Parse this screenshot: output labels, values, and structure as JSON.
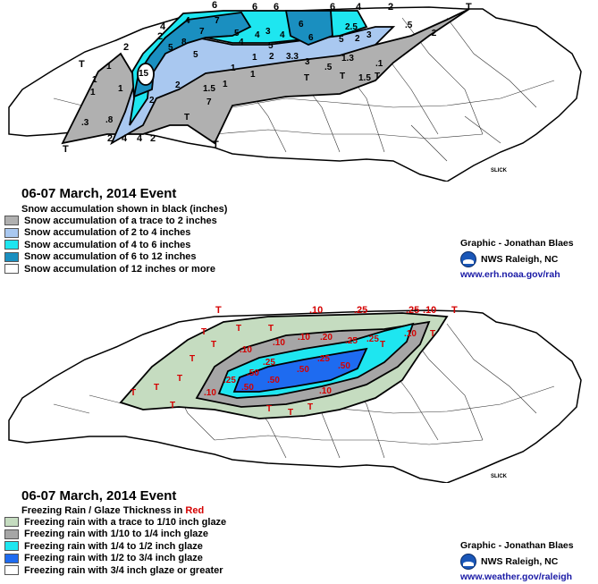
{
  "snow": {
    "title": "06-07 March, 2014 Event",
    "subtitle": "Snow accumulation shown in black (inches)",
    "legend": [
      {
        "label": "Snow accumulation of a trace to 2 inches",
        "color": "#b0b0b0"
      },
      {
        "label": "Snow accumulation of 2 to 4 inches",
        "color": "#a9c8f0"
      },
      {
        "label": "Snow accumulation of 4 to 6 inches",
        "color": "#1ee6f0"
      },
      {
        "label": "Snow accumulation of 6 to 12 inches",
        "color": "#1a8fc0"
      },
      {
        "label": "Snow accumulation of 12 inches or more",
        "color": "#ffffff"
      }
    ],
    "credit": "Graphic - Jonathan Blaes",
    "office": "NWS Raleigh, NC",
    "url": "www.erh.noaa.gov/rah",
    "map_labels": {
      "contours": [
        "6",
        "6",
        "6",
        "6",
        "4",
        "2",
        "T",
        "4",
        "2",
        "2",
        "T",
        "2",
        "4",
        "4",
        "2",
        "T",
        "T"
      ],
      "amounts": [
        "4",
        "8",
        "7",
        "7",
        "5",
        "4",
        "6",
        "4",
        "3",
        "6",
        "4",
        "2.5",
        "2",
        "3",
        "5",
        "5",
        "1.5",
        "5",
        "3.3",
        "3",
        "2",
        "5",
        "2",
        "1",
        "1.3",
        "15",
        "2",
        "1",
        "1.5",
        "1",
        "1",
        "1",
        "1",
        "7",
        "T",
        "T",
        "T",
        "T",
        ".8",
        ".3",
        ".5",
        "1",
        ".2",
        ".5",
        "1",
        ".1"
      ]
    }
  },
  "ice": {
    "title": "06-07 March, 2014 Event",
    "subtitle_prefix": "Freezing Rain / Glaze Thickness in ",
    "subtitle_red": "Red",
    "legend": [
      {
        "label": "Freezing rain with a trace to 1/10 inch glaze",
        "color": "#c5dcc0"
      },
      {
        "label": "Freezing rain with 1/10 to 1/4 inch glaze",
        "color": "#a6a6a6"
      },
      {
        "label": "Freezing rain with 1/4 to 1/2 inch glaze",
        "color": "#1ee6f0"
      },
      {
        "label": "Freezing rain with 1/2 to 3/4 inch glaze",
        "color": "#1e6bf0"
      },
      {
        "label": "Freezing rain with 3/4 inch glaze or greater",
        "color": "#ffffff"
      }
    ],
    "credit": "Graphic - Jonathan Blaes",
    "office": "NWS Raleigh, NC",
    "url": "www.weather.gov/raleigh",
    "map_labels": {
      "contours": [
        "T",
        ".10",
        ".25",
        ".25",
        ".10",
        "T"
      ],
      "amounts": [
        ".10",
        ".10",
        ".20",
        ".25",
        ".25",
        ".10",
        ".25",
        ".50",
        ".50",
        ".50",
        ".50",
        ".50",
        ".25",
        ".25",
        ".10",
        ".10",
        ".10",
        "T",
        "T",
        "T",
        "T",
        "T",
        "T",
        "T",
        "T",
        "T",
        "T",
        "T",
        "T",
        "T",
        "T"
      ]
    }
  },
  "slick_label": "SLICK"
}
